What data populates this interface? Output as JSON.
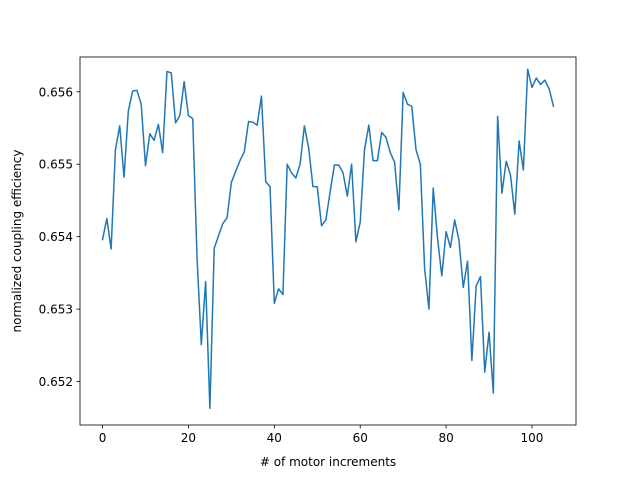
{
  "chart_data": {
    "type": "line",
    "title": "",
    "xlabel": "# of motor increments",
    "ylabel": "normalized coupling efficiency",
    "xlim": [
      -5.25,
      110.25
    ],
    "ylim": [
      0.6514,
      0.65648
    ],
    "xticks": [
      0,
      20,
      40,
      60,
      80,
      100
    ],
    "xtick_labels": [
      "0",
      "20",
      "40",
      "60",
      "80",
      "100"
    ],
    "yticks": [
      0.652,
      0.653,
      0.654,
      0.655,
      0.656
    ],
    "ytick_labels": [
      "0.652",
      "0.653",
      "0.654",
      "0.655",
      "0.656"
    ],
    "grid": false,
    "legend": "none",
    "series": [
      {
        "color": "#1f77b4",
        "x": [
          0,
          1,
          2,
          3,
          4,
          5,
          6,
          7,
          8,
          9,
          10,
          11,
          12,
          13,
          14,
          15,
          16,
          17,
          18,
          19,
          20,
          21,
          22,
          23,
          24,
          25,
          26,
          27,
          28,
          29,
          30,
          31,
          32,
          33,
          34,
          35,
          36,
          37,
          38,
          39,
          40,
          41,
          42,
          43,
          44,
          45,
          46,
          47,
          48,
          49,
          50,
          51,
          52,
          53,
          54,
          55,
          56,
          57,
          58,
          59,
          60,
          61,
          62,
          63,
          64,
          65,
          66,
          67,
          68,
          69,
          70,
          71,
          72,
          73,
          74,
          75,
          76,
          77,
          78,
          79,
          80,
          81,
          82,
          83,
          84,
          85,
          86,
          87,
          88,
          89,
          90,
          91,
          92,
          93,
          94,
          95,
          96,
          97,
          98,
          99,
          100,
          101,
          102,
          103,
          104,
          105
        ],
        "values": [
          0.65396,
          0.65425,
          0.65383,
          0.6552,
          0.65553,
          0.65482,
          0.65573,
          0.65601,
          0.65602,
          0.65583,
          0.65498,
          0.65542,
          0.65533,
          0.65555,
          0.65516,
          0.65628,
          0.65626,
          0.65557,
          0.65567,
          0.65614,
          0.65567,
          0.65563,
          0.65371,
          0.65251,
          0.65338,
          0.65163,
          0.65384,
          0.65401,
          0.65418,
          0.65426,
          0.65475,
          0.6549,
          0.65505,
          0.65517,
          0.65559,
          0.65558,
          0.65554,
          0.65594,
          0.65476,
          0.65469,
          0.65308,
          0.65328,
          0.6532,
          0.655,
          0.65488,
          0.65481,
          0.655,
          0.65553,
          0.65522,
          0.65469,
          0.65469,
          0.65415,
          0.65423,
          0.65462,
          0.65499,
          0.65499,
          0.65488,
          0.65456,
          0.655,
          0.65393,
          0.6542,
          0.6552,
          0.65554,
          0.65505,
          0.65505,
          0.65544,
          0.65537,
          0.65516,
          0.65503,
          0.65437,
          0.65599,
          0.65583,
          0.6558,
          0.6552,
          0.655,
          0.65356,
          0.653,
          0.65467,
          0.65398,
          0.65346,
          0.65407,
          0.65385,
          0.65423,
          0.65395,
          0.6533,
          0.65366,
          0.65229,
          0.65332,
          0.65345,
          0.65213,
          0.65268,
          0.65184,
          0.65566,
          0.6546,
          0.65504,
          0.65485,
          0.65431,
          0.65532,
          0.65492,
          0.65631,
          0.65606,
          0.65619,
          0.6561,
          0.65616,
          0.65604,
          0.6558
        ]
      }
    ]
  }
}
